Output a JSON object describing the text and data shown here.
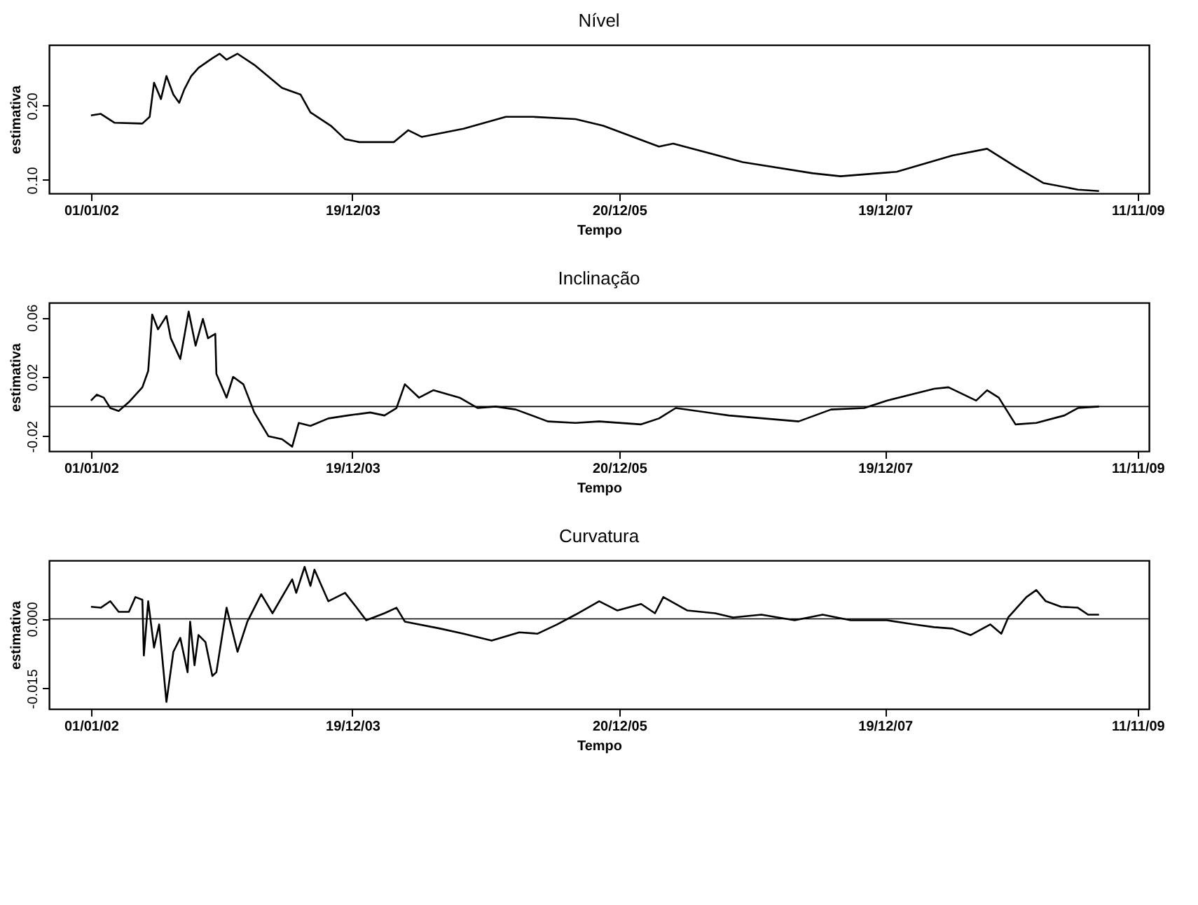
{
  "chart_data": [
    {
      "type": "line",
      "title": "Nível",
      "xlabel": "Tempo",
      "ylabel": "estimativa",
      "xlim": [
        "2001-09-08",
        "2009-12-12"
      ],
      "xticks": [
        {
          "value": "2002-01-01",
          "label": "01/01/02"
        },
        {
          "value": "2003-12-19",
          "label": "19/12/03"
        },
        {
          "value": "2005-12-20",
          "label": "20/12/05"
        },
        {
          "value": "2007-12-19",
          "label": "19/12/07"
        },
        {
          "value": "2009-11-11",
          "label": "11/11/09"
        }
      ],
      "ylim": [
        0.082,
        0.282
      ],
      "yticks": [
        {
          "value": 0.1,
          "label": "0.10"
        },
        {
          "value": 0.2,
          "label": "0.20"
        }
      ],
      "x": [
        "2002-01-01",
        "2002-01-28",
        "2002-03-07",
        "2002-05-22",
        "2002-06-11",
        "2002-06-23",
        "2002-07-12",
        "2002-07-27",
        "2002-08-15",
        "2002-08-31",
        "2002-09-14",
        "2002-10-03",
        "2002-10-23",
        "2002-11-30",
        "2002-12-20",
        "2003-01-08",
        "2003-02-07",
        "2003-03-25",
        "2003-06-09",
        "2003-07-30",
        "2003-08-26",
        "2003-10-21",
        "2003-11-29",
        "2004-01-07",
        "2004-04-11",
        "2004-05-20",
        "2004-06-26",
        "2004-10-19",
        "2005-02-12",
        "2005-04-29",
        "2005-08-22",
        "2005-11-06",
        "2006-04-08",
        "2006-05-17",
        "2006-11-24",
        "2007-06-04",
        "2007-08-19",
        "2008-01-20",
        "2008-06-21",
        "2008-09-24",
        "2008-12-11",
        "2009-02-25",
        "2009-05-31",
        "2009-07-28"
      ],
      "series": [
        {
          "color": "#000000",
          "values": [
            0.187,
            0.189,
            0.177,
            0.176,
            0.185,
            0.231,
            0.209,
            0.24,
            0.215,
            0.204,
            0.222,
            0.24,
            0.251,
            0.264,
            0.27,
            0.262,
            0.27,
            0.255,
            0.224,
            0.215,
            0.191,
            0.173,
            0.155,
            0.151,
            0.151,
            0.167,
            0.158,
            0.169,
            0.185,
            0.185,
            0.182,
            0.173,
            0.145,
            0.149,
            0.124,
            0.109,
            0.105,
            0.111,
            0.133,
            0.142,
            0.118,
            0.096,
            0.087,
            0.085
          ]
        }
      ]
    },
    {
      "type": "line",
      "title": "Inclinação",
      "xlabel": "Tempo",
      "ylabel": "estimativa",
      "xlim": [
        "2001-09-08",
        "2009-12-12"
      ],
      "xticks": [
        {
          "value": "2002-01-01",
          "label": "01/01/02"
        },
        {
          "value": "2003-12-19",
          "label": "19/12/03"
        },
        {
          "value": "2005-12-20",
          "label": "20/12/05"
        },
        {
          "value": "2007-12-19",
          "label": "19/12/07"
        },
        {
          "value": "2009-11-11",
          "label": "11/11/09"
        }
      ],
      "ylim": [
        -0.03,
        0.07
      ],
      "yticks": [
        -0.02,
        0.02,
        0.06
      ],
      "ref_lines": [
        {
          "axis": "y",
          "value": 0,
          "color": "#000000"
        }
      ],
      "x": [
        "2002-01-01",
        "2002-01-17",
        "2002-02-05",
        "2002-02-23",
        "2002-03-18",
        "2002-04-15",
        "2002-05-22",
        "2002-06-07",
        "2002-06-18",
        "2002-07-04",
        "2002-07-27",
        "2002-08-08",
        "2002-09-03",
        "2002-09-26",
        "2002-10-15",
        "2002-11-04",
        "2002-11-18",
        "2002-12-08",
        "2002-12-11",
        "2003-01-08",
        "2003-01-26",
        "2003-02-23",
        "2003-03-25",
        "2003-05-03",
        "2003-06-09",
        "2003-07-07",
        "2003-07-25",
        "2003-08-26",
        "2003-10-14",
        "2003-12-06",
        "2004-02-06",
        "2004-03-16",
        "2004-04-18",
        "2004-05-11",
        "2004-06-19",
        "2004-07-28",
        "2004-10-08",
        "2004-11-27",
        "2005-01-15",
        "2005-03-11",
        "2005-06-07",
        "2005-08-22",
        "2005-10-26",
        "2006-02-18",
        "2006-04-08",
        "2006-05-24",
        "2006-10-17",
        "2007-04-26",
        "2007-07-24",
        "2007-10-23",
        "2007-12-24",
        "2008-05-02",
        "2008-06-10",
        "2008-08-25",
        "2008-09-24",
        "2008-10-26",
        "2008-12-11",
        "2009-02-06",
        "2009-04-24",
        "2009-05-31",
        "2009-07-28"
      ],
      "series": [
        {
          "color": "#000000",
          "values": [
            0.004,
            0.008,
            0.006,
            -0.001,
            -0.003,
            0.003,
            0.013,
            0.024,
            0.062,
            0.052,
            0.061,
            0.046,
            0.032,
            0.064,
            0.041,
            0.059,
            0.046,
            0.049,
            0.022,
            0.006,
            0.02,
            0.015,
            -0.004,
            -0.02,
            -0.022,
            -0.027,
            -0.011,
            -0.013,
            -0.008,
            -0.006,
            -0.004,
            -0.006,
            -0.001,
            0.015,
            0.006,
            0.011,
            0.006,
            -0.001,
            0,
            -0.002,
            -0.01,
            -0.011,
            -0.01,
            -0.012,
            -0.008,
            -0.001,
            -0.006,
            -0.01,
            -0.002,
            -0.001,
            0.004,
            0.012,
            0.013,
            0.004,
            0.011,
            0.006,
            -0.012,
            -0.011,
            -0.006,
            -0.001,
            0.0
          ]
        }
      ]
    },
    {
      "type": "line",
      "title": "Curvatura",
      "xlabel": "Tempo",
      "ylabel": "estimativa",
      "xlim": [
        "2001-09-08",
        "2009-12-12"
      ],
      "xticks": [
        {
          "value": "2002-01-01",
          "label": "01/01/02"
        },
        {
          "value": "2003-12-19",
          "label": "19/12/03"
        },
        {
          "value": "2005-12-20",
          "label": "20/12/05"
        },
        {
          "value": "2007-12-19",
          "label": "19/12/07"
        },
        {
          "value": "2009-11-11",
          "label": "11/11/09"
        }
      ],
      "ylim": [
        -0.0194,
        0.0126
      ],
      "yticks": [
        {
          "value": -0.015,
          "label": "-0.015"
        },
        {
          "value": 0,
          "label": "0.000"
        }
      ],
      "ref_lines": [
        {
          "axis": "y",
          "value": 0,
          "color": "#000000"
        }
      ],
      "x": [
        "2002-01-01",
        "2002-01-28",
        "2002-02-23",
        "2002-03-18",
        "2002-04-15",
        "2002-05-03",
        "2002-05-22",
        "2002-05-26",
        "2002-06-07",
        "2002-06-23",
        "2002-07-07",
        "2002-07-27",
        "2002-08-15",
        "2002-09-03",
        "2002-09-23",
        "2002-09-30",
        "2002-10-12",
        "2002-10-23",
        "2002-11-11",
        "2002-11-30",
        "2002-12-11",
        "2003-01-08",
        "2003-02-07",
        "2003-03-06",
        "2003-04-13",
        "2003-05-14",
        "2003-07-07",
        "2003-07-18",
        "2003-08-10",
        "2003-08-26",
        "2003-09-06",
        "2003-10-14",
        "2003-11-29",
        "2003-12-29",
        "2004-01-26",
        "2004-03-16",
        "2004-04-18",
        "2004-05-11",
        "2004-08-16",
        "2004-10-19",
        "2005-01-04",
        "2005-03-21",
        "2005-05-10",
        "2005-07-03",
        "2005-08-22",
        "2005-10-26",
        "2005-12-15",
        "2006-02-18",
        "2006-03-28",
        "2006-04-20",
        "2006-06-25",
        "2006-09-09",
        "2006-10-28",
        "2007-01-14",
        "2007-04-15",
        "2007-07-01",
        "2007-09-16",
        "2007-12-24",
        "2008-03-09",
        "2008-05-02",
        "2008-06-21",
        "2008-08-10",
        "2008-10-03",
        "2008-11-02",
        "2008-11-21",
        "2009-01-10",
        "2009-02-06",
        "2009-03-04",
        "2009-04-15",
        "2009-05-31",
        "2009-06-28",
        "2009-07-28"
      ],
      "series": [
        {
          "color": "#000000",
          "values": [
            0.0026,
            0.0024,
            0.0038,
            0.0015,
            0.0015,
            0.0047,
            0.0041,
            -0.0079,
            0.0038,
            -0.0062,
            -0.0012,
            -0.0179,
            -0.0071,
            -0.0041,
            -0.0115,
            -0.0006,
            -0.01,
            -0.0035,
            -0.005,
            -0.0123,
            -0.0115,
            0.0024,
            -0.0071,
            -0.0006,
            0.0053,
            0.0012,
            0.0085,
            0.0056,
            0.0112,
            0.0071,
            0.0106,
            0.0038,
            0.0056,
            0.0026,
            -0.0003,
            0.0012,
            0.0024,
            -0.0006,
            -0.0021,
            -0.0032,
            -0.0047,
            -0.0029,
            -0.0032,
            -0.0012,
            0.0009,
            0.0038,
            0.0018,
            0.0032,
            0.0012,
            0.0047,
            0.0018,
            0.0012,
            0.0003,
            0.0009,
            -0.0003,
            0.0009,
            -0.0003,
            -0.0003,
            -0.0012,
            -0.0018,
            -0.0021,
            -0.0035,
            -0.0012,
            -0.0032,
            0.0003,
            0.0047,
            0.0062,
            0.0038,
            0.0026,
            0.0024,
            0.0009,
            0.0009
          ]
        }
      ]
    }
  ]
}
